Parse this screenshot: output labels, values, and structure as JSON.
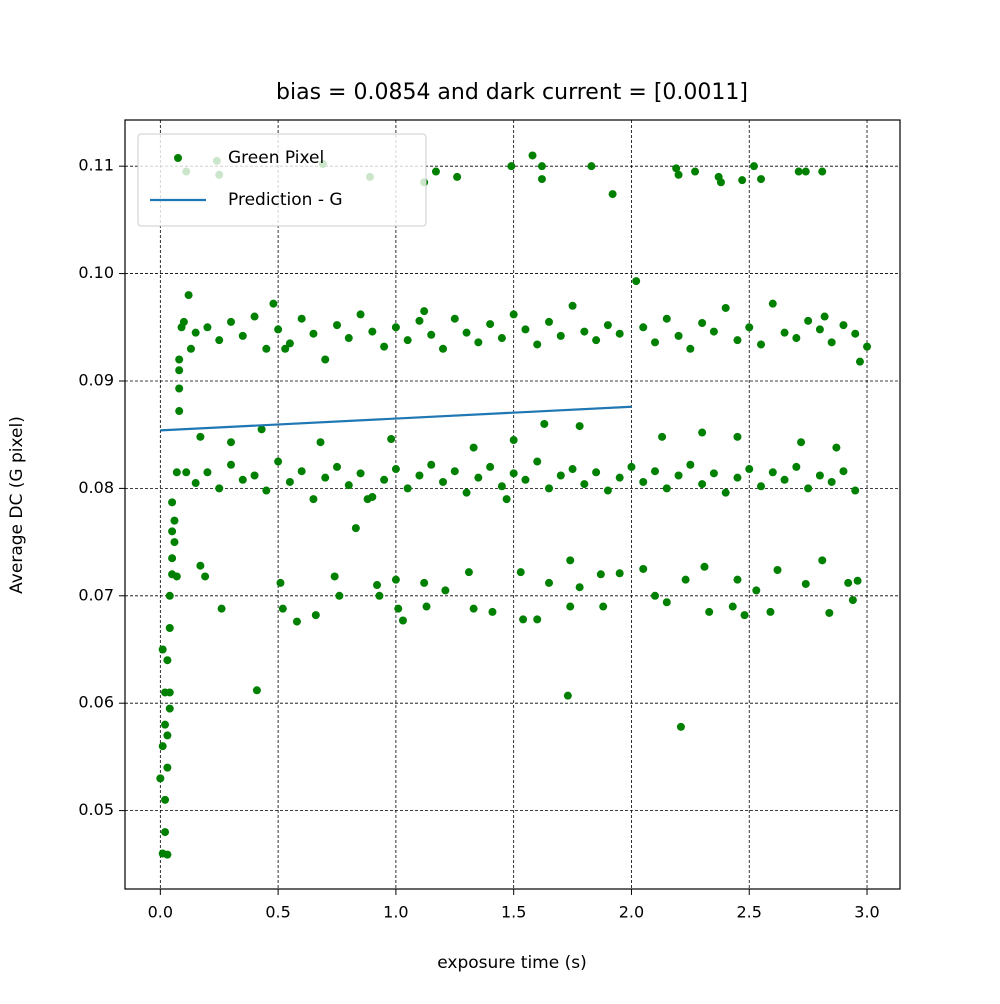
{
  "chart_data": {
    "type": "scatter",
    "title": "bias = 0.0854 and dark current = [0.0011]",
    "xlabel": "exposure time (s)",
    "ylabel": "Average DC (G pixel)",
    "xlim": [
      -0.15,
      3.14
    ],
    "ylim": [
      0.0427,
      0.1143
    ],
    "xticks": [
      {
        "value": 0,
        "label": "0.0"
      },
      0.5,
      {
        "value": 1,
        "label": "1.0"
      },
      1.5,
      {
        "value": 2,
        "label": "2.0"
      },
      2.5,
      {
        "value": 3,
        "label": "3.0"
      }
    ],
    "yticks": [
      0.05,
      0.06,
      0.07,
      0.08,
      0.09,
      {
        "value": 0.1,
        "label": "0.10"
      },
      0.11
    ],
    "grid": true,
    "legend": "upper left",
    "series": [
      {
        "name": "Green Pixel",
        "type": "scatter",
        "color": "#008000",
        "x": [
          0,
          0.01,
          0.02,
          0.01,
          0.02,
          0.03,
          0.02,
          0.03,
          0.03,
          0.02,
          0.03,
          0.01,
          0.04,
          0.04,
          0.04,
          0.04,
          0.05,
          0.05,
          0.05,
          0.06,
          0.06,
          0.05,
          0.07,
          0.08,
          0.08,
          0.08,
          0.08,
          0.09,
          0.1,
          0.12,
          0.11,
          0.13,
          0.07,
          0.15,
          0.2,
          0.25,
          0.3,
          0.35,
          0.4,
          0.45,
          0.5,
          0.55,
          0.6,
          0.65,
          0.7,
          0.75,
          0.8,
          0.85,
          0.9,
          0.95,
          1.0,
          1.05,
          1.1,
          1.15,
          1.2,
          1.25,
          1.3,
          1.35,
          1.4,
          1.45,
          1.5,
          1.55,
          1.6,
          1.65,
          1.7,
          1.75,
          1.8,
          1.85,
          1.9,
          1.95,
          2.05,
          2.1,
          2.15,
          2.2,
          2.25,
          2.3,
          2.35,
          2.4,
          2.45,
          2.5,
          2.55,
          2.6,
          2.65,
          2.7,
          2.75,
          2.8,
          2.85,
          2.9,
          2.95,
          0.53,
          1.12,
          2.82,
          0.48,
          0.15,
          0.2,
          0.25,
          0.3,
          0.35,
          0.4,
          0.45,
          0.5,
          0.55,
          0.6,
          0.65,
          0.7,
          0.75,
          0.8,
          0.85,
          0.9,
          0.95,
          1.0,
          1.05,
          1.1,
          1.15,
          1.2,
          1.25,
          1.3,
          1.35,
          1.4,
          1.45,
          1.5,
          1.55,
          1.6,
          1.65,
          1.7,
          1.75,
          1.8,
          1.85,
          1.9,
          1.95,
          2.0,
          2.05,
          2.1,
          2.15,
          2.2,
          2.25,
          2.3,
          2.35,
          2.4,
          2.45,
          2.5,
          2.55,
          2.6,
          2.65,
          2.7,
          2.75,
          2.8,
          2.85,
          2.9,
          2.95,
          0.17,
          0.43,
          0.68,
          0.98,
          1.33,
          1.5,
          1.63,
          1.78,
          2.13,
          2.3,
          2.45,
          2.72,
          2.87,
          0.3,
          1.47,
          0.88,
          0.11,
          0.24,
          0.25,
          0.69,
          0.89,
          1.12,
          1.17,
          1.26,
          1.49,
          1.58,
          1.62,
          1.62,
          1.83,
          2.19,
          2.2,
          2.27,
          2.37,
          2.38,
          2.47,
          2.52,
          2.55,
          2.71,
          2.74,
          2.81,
          0.17,
          0.19,
          0.26,
          0.51,
          0.52,
          0.58,
          0.66,
          0.74,
          0.76,
          0.92,
          0.93,
          1.0,
          1.01,
          1.03,
          1.12,
          1.13,
          1.21,
          1.31,
          1.33,
          1.41,
          1.53,
          1.54,
          1.6,
          1.65,
          1.74,
          1.74,
          1.78,
          1.87,
          1.88,
          1.95,
          2.05,
          2.1,
          2.15,
          2.23,
          2.31,
          2.33,
          2.43,
          2.45,
          2.48,
          2.53,
          2.59,
          2.62,
          2.74,
          2.81,
          2.84,
          2.92,
          2.94,
          2.96,
          0.41,
          1.73,
          2.21,
          2.02,
          0.83,
          2.97,
          3.0,
          1.92
        ],
        "values": [
          0.053,
          0.046,
          0.048,
          0.056,
          0.058,
          0.0459,
          0.051,
          0.054,
          0.057,
          0.061,
          0.064,
          0.065,
          0.061,
          0.0595,
          0.067,
          0.07,
          0.072,
          0.0735,
          0.076,
          0.077,
          0.075,
          0.0787,
          0.0815,
          0.0872,
          0.0893,
          0.091,
          0.092,
          0.095,
          0.0955,
          0.098,
          0.0815,
          0.093,
          0.0718,
          0.0945,
          0.095,
          0.0938,
          0.0955,
          0.0942,
          0.096,
          0.093,
          0.0948,
          0.0935,
          0.0958,
          0.0944,
          0.092,
          0.0952,
          0.094,
          0.0962,
          0.0946,
          0.0932,
          0.095,
          0.0938,
          0.0956,
          0.0943,
          0.093,
          0.0958,
          0.0945,
          0.0936,
          0.0953,
          0.094,
          0.0962,
          0.0948,
          0.0934,
          0.0955,
          0.0942,
          0.097,
          0.0946,
          0.0938,
          0.0952,
          0.0944,
          0.095,
          0.0936,
          0.0958,
          0.0942,
          0.093,
          0.0954,
          0.0946,
          0.0968,
          0.0938,
          0.095,
          0.0934,
          0.0972,
          0.0945,
          0.094,
          0.0956,
          0.0948,
          0.0936,
          0.0952,
          0.0944,
          0.093,
          0.0965,
          0.096,
          0.0972,
          0.0805,
          0.0815,
          0.08,
          0.0822,
          0.0808,
          0.0812,
          0.0798,
          0.0825,
          0.0806,
          0.0816,
          0.079,
          0.081,
          0.082,
          0.0803,
          0.0814,
          0.0792,
          0.0808,
          0.0818,
          0.08,
          0.0812,
          0.0822,
          0.0806,
          0.0816,
          0.0796,
          0.081,
          0.082,
          0.0802,
          0.0814,
          0.0808,
          0.0825,
          0.08,
          0.0812,
          0.0818,
          0.0804,
          0.0815,
          0.0798,
          0.081,
          0.082,
          0.0806,
          0.0816,
          0.08,
          0.0812,
          0.0822,
          0.0804,
          0.0814,
          0.0796,
          0.081,
          0.0818,
          0.0802,
          0.0815,
          0.0808,
          0.082,
          0.08,
          0.0812,
          0.0806,
          0.0816,
          0.0798,
          0.0848,
          0.0855,
          0.0843,
          0.0846,
          0.0838,
          0.0845,
          0.086,
          0.0858,
          0.0848,
          0.0852,
          0.0848,
          0.0843,
          0.0838,
          0.0843,
          0.079,
          0.079,
          0.1095,
          0.1105,
          0.1092,
          0.1102,
          0.109,
          0.1085,
          0.1095,
          0.109,
          0.11,
          0.111,
          0.11,
          0.1088,
          0.11,
          0.1098,
          0.1092,
          0.1095,
          0.109,
          0.1085,
          0.1087,
          0.11,
          0.1088,
          0.1095,
          0.1095,
          0.1095,
          0.0728,
          0.0718,
          0.0688,
          0.0712,
          0.0688,
          0.0676,
          0.0682,
          0.0718,
          0.07,
          0.071,
          0.07,
          0.0715,
          0.0688,
          0.0677,
          0.0712,
          0.069,
          0.0705,
          0.0722,
          0.0688,
          0.0685,
          0.0722,
          0.0678,
          0.0678,
          0.0712,
          0.0733,
          0.069,
          0.0708,
          0.072,
          0.069,
          0.0721,
          0.0725,
          0.07,
          0.0694,
          0.0715,
          0.0727,
          0.0685,
          0.069,
          0.0715,
          0.0682,
          0.0705,
          0.0685,
          0.0724,
          0.0711,
          0.0733,
          0.0684,
          0.0712,
          0.0696,
          0.0714,
          0.0612,
          0.0607,
          0.0578,
          0.0993,
          0.0763,
          0.0918,
          0.0932,
          0.1074
        ]
      },
      {
        "name": "Prediction - G",
        "type": "line",
        "color": "#1f77b4",
        "x": [
          0,
          2
        ],
        "values": [
          0.0854,
          0.0876
        ]
      }
    ]
  }
}
